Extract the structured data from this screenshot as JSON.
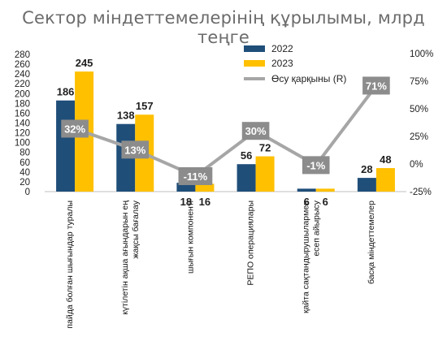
{
  "chart_data": {
    "type": "bar",
    "title": "Сектор міндеттемелерінің құрылымы, млрд теңге",
    "categories": [
      "пайда болған шығындар туралы",
      "күтілетін ақша ағындарын ең жақсы бағалау",
      "шығын компоненті",
      "РЕПО операциялары",
      "қайта сақтандырушылармен есеп айырысу",
      "басқа міндеттемелер"
    ],
    "category_lines": [
      [
        "пайда болған шығындар туралы"
      ],
      [
        "күтілетін ақша ағындарын ең",
        "жақсы бағалау"
      ],
      [
        "шығын компоненті"
      ],
      [
        "РЕПО операциялары"
      ],
      [
        "қайта сақтандырушылармен",
        "есеп айырысу"
      ],
      [
        "басқа міндеттемелер"
      ]
    ],
    "series": [
      {
        "name": "2022",
        "values": [
          186,
          138,
          18,
          56,
          6,
          28
        ],
        "labels": [
          "186",
          "138",
          "18",
          "56",
          "6",
          "28"
        ],
        "color": "#1f4e79"
      },
      {
        "name": "2023",
        "values": [
          245,
          157,
          16,
          72,
          6,
          48
        ],
        "labels": [
          "245",
          "157",
          "16",
          "72",
          "6",
          "48"
        ],
        "color": "#ffc000"
      }
    ],
    "growth": {
      "name": "Өсу қарқыны (R)",
      "values": [
        32,
        13,
        -11,
        30,
        -1,
        71
      ],
      "labels": [
        "32%",
        "13%",
        "-11%",
        "30%",
        "-1%",
        "71%"
      ],
      "color": "#a6a6a6",
      "label_bg": "#8c8c8c"
    },
    "y_left": {
      "min": 0,
      "max": 280,
      "ticks": [
        "0",
        "20",
        "40",
        "60",
        "80",
        "100",
        "120",
        "140",
        "160",
        "180",
        "200",
        "220",
        "240",
        "260",
        "280"
      ],
      "tick_values": [
        0,
        20,
        40,
        60,
        80,
        100,
        120,
        140,
        160,
        180,
        200,
        220,
        240,
        260,
        280
      ]
    },
    "y_right": {
      "min": -25,
      "max": 100,
      "ticks": [
        "-25%",
        "0%",
        "25%",
        "50%",
        "75%",
        "100%"
      ],
      "tick_values": [
        -25,
        0,
        25,
        50,
        75,
        100
      ]
    },
    "legend_position": "top-right",
    "grid": false
  }
}
